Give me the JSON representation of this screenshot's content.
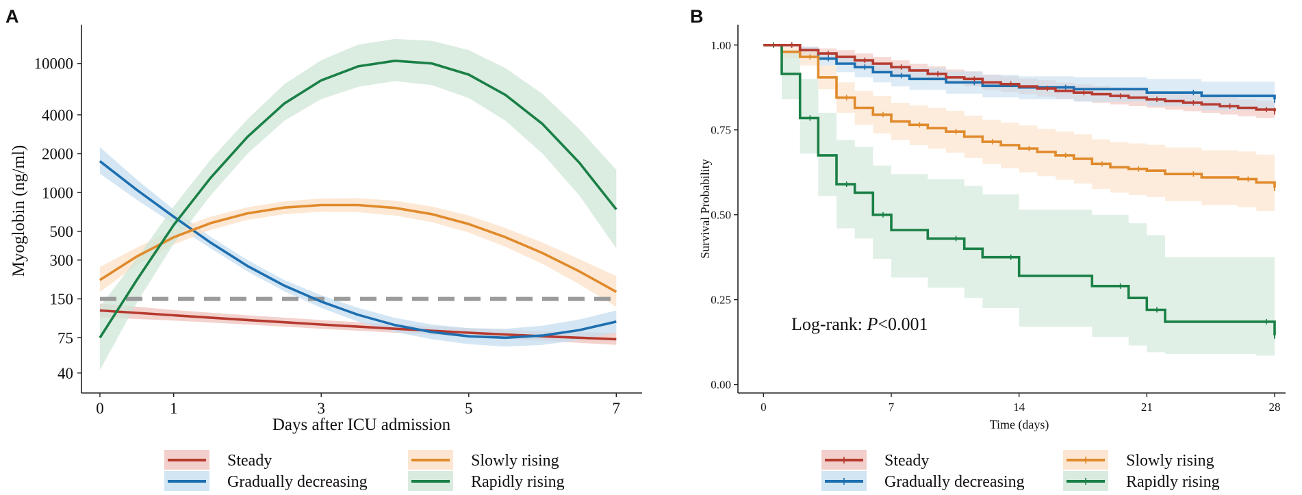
{
  "panels": [
    {
      "letter": "A"
    },
    {
      "letter": "B"
    }
  ],
  "chart_data": [
    {
      "type": "line",
      "panel": "A",
      "xlabel": "Days after ICU admission",
      "ylabel": "Myoglobin (ng/ml)",
      "yscale": "log",
      "xlim": [
        -0.25,
        7.35
      ],
      "ylim": [
        28,
        20000
      ],
      "xticks": [
        0,
        1,
        3,
        5,
        7
      ],
      "yticks": [
        40,
        75,
        150,
        300,
        500,
        1000,
        2000,
        4000,
        10000
      ],
      "ytick_labels": [
        "40",
        "75",
        "150",
        "300",
        "500",
        "1000",
        "2000",
        "4000",
        "10000"
      ],
      "reference_line": {
        "y": 150,
        "style": "dashed",
        "color": "#9a9a9a"
      },
      "series": [
        {
          "name": "Steady",
          "color": "#b63a2f",
          "band_color": "#efc3bd",
          "x": [
            0,
            1,
            2,
            3,
            4,
            5,
            6,
            7
          ],
          "y": [
            122,
            112,
            103,
            95,
            88,
            82,
            77,
            73
          ],
          "lower": [
            108,
            102,
            95,
            88,
            82,
            76,
            71,
            66
          ],
          "upper": [
            138,
            123,
            112,
            103,
            95,
            89,
            84,
            82
          ]
        },
        {
          "name": "Gradually decreasing",
          "color": "#1d6fb0",
          "band_color": "#c6def0",
          "x": [
            0,
            0.5,
            1,
            1.5,
            2,
            2.5,
            3,
            3.5,
            4,
            4.5,
            5,
            5.5,
            6,
            6.5,
            7
          ],
          "y": [
            1750,
            1050,
            650,
            410,
            270,
            190,
            143,
            113,
            94,
            83,
            77,
            75,
            78,
            86,
            100
          ],
          "lower": [
            1400,
            880,
            570,
            370,
            245,
            172,
            128,
            100,
            83,
            73,
            67,
            64,
            66,
            72,
            82
          ],
          "upper": [
            2250,
            1260,
            740,
            455,
            300,
            210,
            160,
            128,
            107,
            95,
            89,
            88,
            93,
            104,
            122
          ]
        },
        {
          "name": "Slowly rising",
          "color": "#e08a2c",
          "band_color": "#fbe0c6",
          "x": [
            0,
            0.5,
            1,
            1.5,
            2,
            2.5,
            3,
            3.5,
            4,
            4.5,
            5,
            5.5,
            6,
            6.5,
            7
          ],
          "y": [
            210,
            320,
            450,
            580,
            690,
            765,
            800,
            800,
            760,
            680,
            570,
            450,
            340,
            245,
            170
          ],
          "lower": [
            170,
            275,
            395,
            515,
            615,
            680,
            710,
            705,
            665,
            590,
            490,
            380,
            280,
            195,
            130
          ],
          "upper": [
            265,
            375,
            515,
            650,
            770,
            855,
            900,
            905,
            865,
            780,
            665,
            530,
            410,
            305,
            225
          ]
        },
        {
          "name": "Rapidly rising",
          "color": "#1a8046",
          "band_color": "#cfe6d7",
          "x": [
            0,
            0.5,
            1,
            1.5,
            2,
            2.5,
            3,
            3.5,
            4,
            4.5,
            5,
            5.5,
            6,
            6.5,
            7
          ],
          "y": [
            75,
            210,
            560,
            1300,
            2700,
            4900,
            7400,
            9500,
            10500,
            10000,
            8200,
            5700,
            3400,
            1700,
            740
          ],
          "lower": [
            42,
            140,
            400,
            950,
            2000,
            3600,
            5300,
            6600,
            7300,
            6800,
            5400,
            3600,
            2000,
            950,
            370
          ],
          "upper": [
            130,
            310,
            780,
            1800,
            3700,
            6900,
            10600,
            14000,
            15500,
            15000,
            12700,
            9200,
            5800,
            3100,
            1500
          ]
        }
      ]
    },
    {
      "type": "line",
      "panel": "B",
      "step": true,
      "xlabel": "Time (days)",
      "ylabel": "Survival Probability",
      "xlim": [
        -1.4,
        28.6
      ],
      "ylim": [
        -0.025,
        1.06
      ],
      "xticks": [
        0,
        7,
        14,
        21,
        28
      ],
      "yticks": [
        0,
        0.25,
        0.5,
        0.75,
        1
      ],
      "ytick_labels": [
        "0.00",
        "0.25",
        "0.50",
        "0.75",
        "1.00"
      ],
      "annotation": {
        "prefix": "Log-rank: ",
        "italic": "P",
        "suffix": "<0.001"
      },
      "series": [
        {
          "name": "Steady",
          "color": "#b63a2f",
          "band_color": "#efc3bd",
          "x": [
            0,
            2,
            3,
            4,
            5,
            6,
            7,
            8,
            9,
            10,
            11,
            12,
            13,
            14,
            15,
            16,
            17,
            18,
            19,
            20,
            21,
            22,
            23,
            24,
            25,
            26,
            27,
            28
          ],
          "y": [
            1.0,
            0.985,
            0.975,
            0.965,
            0.955,
            0.945,
            0.935,
            0.925,
            0.915,
            0.905,
            0.9,
            0.89,
            0.885,
            0.878,
            0.872,
            0.865,
            0.86,
            0.855,
            0.85,
            0.845,
            0.84,
            0.835,
            0.83,
            0.825,
            0.82,
            0.815,
            0.81,
            0.805
          ],
          "lower": [
            1.0,
            0.97,
            0.955,
            0.945,
            0.935,
            0.925,
            0.915,
            0.905,
            0.895,
            0.885,
            0.878,
            0.868,
            0.862,
            0.855,
            0.848,
            0.842,
            0.836,
            0.83,
            0.825,
            0.82,
            0.815,
            0.81,
            0.805,
            0.8,
            0.795,
            0.79,
            0.785,
            0.78
          ],
          "upper": [
            1.0,
            0.995,
            0.99,
            0.985,
            0.975,
            0.965,
            0.955,
            0.945,
            0.937,
            0.928,
            0.922,
            0.913,
            0.908,
            0.901,
            0.896,
            0.889,
            0.884,
            0.879,
            0.875,
            0.87,
            0.865,
            0.86,
            0.855,
            0.85,
            0.845,
            0.84,
            0.835,
            0.83
          ]
        },
        {
          "name": "Gradually decreasing",
          "color": "#1d6fb0",
          "band_color": "#c6def0",
          "x": [
            0,
            2,
            3,
            4,
            5,
            6,
            7,
            8,
            10,
            12,
            14,
            17,
            21,
            24,
            28
          ],
          "y": [
            1.0,
            0.985,
            0.96,
            0.945,
            0.935,
            0.92,
            0.91,
            0.9,
            0.89,
            0.88,
            0.875,
            0.87,
            0.86,
            0.85,
            0.84
          ],
          "lower": [
            1.0,
            0.97,
            0.94,
            0.92,
            0.905,
            0.89,
            0.878,
            0.868,
            0.857,
            0.846,
            0.84,
            0.833,
            0.82,
            0.808,
            0.79
          ],
          "upper": [
            1.0,
            0.995,
            0.98,
            0.968,
            0.96,
            0.948,
            0.94,
            0.932,
            0.922,
            0.912,
            0.908,
            0.905,
            0.9,
            0.892,
            0.89
          ]
        },
        {
          "name": "Slowly rising",
          "color": "#e08a2c",
          "band_color": "#fbe0c6",
          "x": [
            0,
            1,
            2,
            3,
            4,
            5,
            6,
            7,
            8,
            9,
            10,
            11,
            12,
            13,
            14,
            15,
            16,
            17,
            18,
            19,
            20,
            21,
            22,
            24,
            26,
            27,
            28
          ],
          "y": [
            1.0,
            0.98,
            0.965,
            0.905,
            0.845,
            0.815,
            0.795,
            0.775,
            0.765,
            0.755,
            0.745,
            0.73,
            0.715,
            0.705,
            0.695,
            0.685,
            0.675,
            0.665,
            0.65,
            0.64,
            0.635,
            0.63,
            0.62,
            0.61,
            0.605,
            0.595,
            0.58
          ],
          "lower": [
            1.0,
            0.96,
            0.94,
            0.87,
            0.8,
            0.765,
            0.74,
            0.72,
            0.705,
            0.695,
            0.683,
            0.667,
            0.65,
            0.637,
            0.625,
            0.614,
            0.603,
            0.592,
            0.576,
            0.565,
            0.558,
            0.552,
            0.54,
            0.528,
            0.522,
            0.511,
            0.49
          ],
          "upper": [
            1.0,
            0.995,
            0.985,
            0.94,
            0.89,
            0.865,
            0.85,
            0.83,
            0.822,
            0.815,
            0.806,
            0.792,
            0.78,
            0.771,
            0.763,
            0.753,
            0.745,
            0.737,
            0.722,
            0.714,
            0.71,
            0.706,
            0.698,
            0.69,
            0.686,
            0.677,
            0.66
          ]
        },
        {
          "name": "Rapidly rising",
          "color": "#1a8046",
          "band_color": "#cfe6d7",
          "x": [
            0,
            1,
            2,
            3,
            4,
            5,
            6,
            7,
            9,
            11,
            12,
            14,
            18,
            20,
            21,
            22,
            27,
            28
          ],
          "y": [
            1.0,
            0.915,
            0.785,
            0.675,
            0.59,
            0.565,
            0.5,
            0.455,
            0.43,
            0.4,
            0.375,
            0.32,
            0.29,
            0.255,
            0.22,
            0.185,
            0.185,
            0.145
          ],
          "lower": [
            1.0,
            0.84,
            0.68,
            0.555,
            0.46,
            0.43,
            0.37,
            0.315,
            0.285,
            0.255,
            0.225,
            0.17,
            0.14,
            0.115,
            0.095,
            0.09,
            0.085,
            0.06
          ],
          "upper": [
            1.0,
            0.985,
            0.9,
            0.8,
            0.72,
            0.7,
            0.645,
            0.62,
            0.605,
            0.585,
            0.56,
            0.515,
            0.5,
            0.475,
            0.44,
            0.375,
            0.375,
            0.34
          ]
        }
      ]
    }
  ]
}
